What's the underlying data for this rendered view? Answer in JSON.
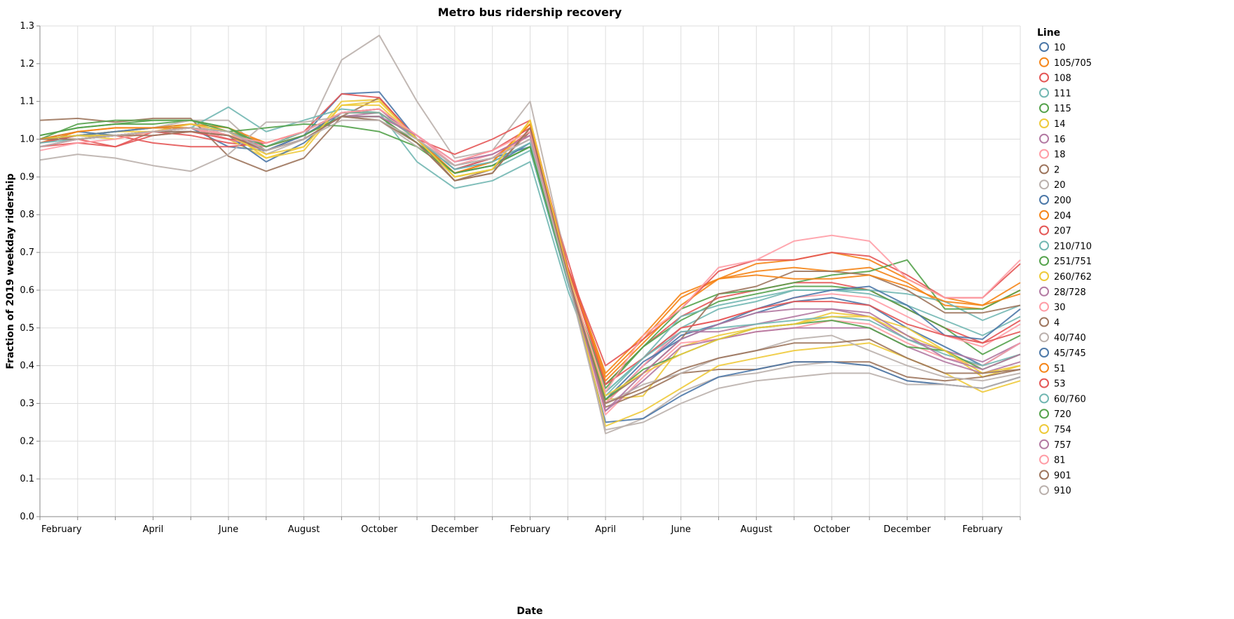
{
  "chart_data": {
    "type": "line",
    "title": "Metro bus ridership recovery",
    "xlabel": "Date",
    "ylabel": "Fraction of 2019 weekday ridership",
    "ylim": [
      0,
      1.3
    ],
    "yticks": [
      "0.0",
      "0.1",
      "0.2",
      "0.3",
      "0.4",
      "0.5",
      "0.6",
      "0.7",
      "0.8",
      "0.9",
      "1.0",
      "1.1",
      "1.2",
      "1.3"
    ],
    "x": [
      "2019-01",
      "2019-02",
      "2019-03",
      "2019-04",
      "2019-05",
      "2019-06",
      "2019-07",
      "2019-08",
      "2019-09",
      "2019-10",
      "2019-11",
      "2019-12",
      "2020-01",
      "2020-02",
      "2020-03",
      "2020-04",
      "2020-05",
      "2020-06",
      "2020-07",
      "2020-08",
      "2020-09",
      "2020-10",
      "2020-11",
      "2020-12",
      "2021-01",
      "2021-02",
      "2021-03"
    ],
    "xtick_labels": [
      {
        "label": "February",
        "month": 1
      },
      {
        "label": "April",
        "month": 3
      },
      {
        "label": "June",
        "month": 5
      },
      {
        "label": "August",
        "month": 7
      },
      {
        "label": "October",
        "month": 9
      },
      {
        "label": "December",
        "month": 11
      },
      {
        "label": "February",
        "month": 13
      },
      {
        "label": "April",
        "month": 15
      },
      {
        "label": "June",
        "month": 17
      },
      {
        "label": "August",
        "month": 19
      },
      {
        "label": "October",
        "month": 21
      },
      {
        "label": "December",
        "month": 23
      },
      {
        "label": "February",
        "month": 25
      }
    ],
    "grid": true,
    "legend": {
      "title": "Line",
      "position": "right"
    },
    "series": [
      {
        "name": "10",
        "color": "#4c78a8",
        "values": [
          1.0,
          1.02,
          1.01,
          1.02,
          1.03,
          0.98,
          0.97,
          1.01,
          1.12,
          1.125,
          1.0,
          0.92,
          0.95,
          0.98,
          0.62,
          0.3,
          0.4,
          0.48,
          0.51,
          0.54,
          0.57,
          0.58,
          0.56,
          0.5,
          0.45,
          0.4,
          0.46
        ]
      },
      {
        "name": "105/705",
        "color": "#f58518",
        "values": [
          1.0,
          1.01,
          1.02,
          1.03,
          1.03,
          1.02,
          0.99,
          1.02,
          1.07,
          1.07,
          1.0,
          0.91,
          0.94,
          1.04,
          0.66,
          0.38,
          0.48,
          0.59,
          0.63,
          0.65,
          0.66,
          0.65,
          0.66,
          0.62,
          0.56,
          0.55,
          0.6
        ]
      },
      {
        "name": "108",
        "color": "#e45756",
        "values": [
          0.98,
          1.0,
          0.98,
          1.02,
          1.01,
          0.99,
          0.98,
          1.01,
          1.07,
          1.07,
          1.0,
          0.92,
          0.95,
          1.02,
          0.68,
          0.35,
          0.45,
          0.53,
          0.58,
          0.6,
          0.62,
          0.62,
          0.6,
          0.55,
          0.5,
          0.46,
          0.52
        ]
      },
      {
        "name": "111",
        "color": "#72b7b2",
        "values": [
          0.99,
          1.01,
          1.02,
          1.03,
          1.04,
          1.02,
          0.98,
          1.02,
          1.07,
          1.07,
          1.0,
          0.9,
          0.92,
          0.97,
          0.62,
          0.32,
          0.42,
          0.5,
          0.55,
          0.57,
          0.6,
          0.6,
          0.59,
          0.56,
          0.52,
          0.48,
          0.53
        ]
      },
      {
        "name": "115",
        "color": "#54a24b",
        "values": [
          1.01,
          1.03,
          1.04,
          1.04,
          1.05,
          1.03,
          0.97,
          1.0,
          1.06,
          1.06,
          0.99,
          0.91,
          0.93,
          0.98,
          0.63,
          0.34,
          0.45,
          0.52,
          0.57,
          0.59,
          0.61,
          0.61,
          0.6,
          0.55,
          0.5,
          0.43,
          0.48
        ]
      },
      {
        "name": "14",
        "color": "#eeca3b",
        "values": [
          1.0,
          1.01,
          1.0,
          1.02,
          1.03,
          1.0,
          0.95,
          0.98,
          1.1,
          1.105,
          1.0,
          0.9,
          0.92,
          1.05,
          0.65,
          0.31,
          0.32,
          0.45,
          0.48,
          0.5,
          0.51,
          0.54,
          0.53,
          0.5,
          0.44,
          0.37,
          0.4
        ]
      },
      {
        "name": "16",
        "color": "#b279a2",
        "values": [
          0.98,
          1.0,
          1.01,
          1.02,
          1.03,
          1.0,
          0.97,
          1.0,
          1.06,
          1.07,
          1.01,
          0.93,
          0.95,
          1.0,
          0.63,
          0.3,
          0.4,
          0.49,
          0.49,
          0.51,
          0.53,
          0.55,
          0.53,
          0.47,
          0.44,
          0.41,
          0.46
        ]
      },
      {
        "name": "18",
        "color": "#ff9da6",
        "values": [
          0.98,
          1.0,
          1.01,
          1.02,
          1.04,
          1.01,
          0.98,
          1.01,
          1.07,
          1.08,
          1.0,
          0.93,
          0.96,
          1.01,
          0.64,
          0.27,
          0.37,
          0.46,
          0.47,
          0.49,
          0.5,
          0.52,
          0.51,
          0.46,
          0.42,
          0.4,
          0.46
        ]
      },
      {
        "name": "2",
        "color": "#9d755d",
        "values": [
          1.05,
          1.055,
          1.045,
          1.055,
          1.055,
          0.955,
          0.915,
          0.95,
          1.06,
          1.11,
          1.0,
          0.89,
          0.92,
          1.02,
          0.64,
          0.29,
          0.33,
          0.38,
          0.39,
          0.39,
          0.41,
          0.41,
          0.41,
          0.37,
          0.36,
          0.37,
          0.39
        ]
      },
      {
        "name": "20",
        "color": "#bab0ac",
        "values": [
          0.99,
          1.01,
          1.02,
          1.03,
          1.05,
          1.05,
          0.96,
          1.0,
          1.21,
          1.275,
          1.1,
          0.95,
          0.97,
          1.1,
          0.66,
          0.22,
          0.26,
          0.33,
          0.37,
          0.38,
          0.4,
          0.41,
          0.4,
          0.36,
          0.35,
          0.34,
          0.37
        ]
      },
      {
        "name": "200",
        "color": "#4c78a8",
        "values": [
          0.99,
          1.01,
          1.01,
          1.02,
          1.02,
          1.01,
          0.94,
          0.99,
          1.07,
          1.08,
          1.0,
          0.92,
          0.94,
          0.99,
          0.63,
          0.25,
          0.26,
          0.32,
          0.37,
          0.39,
          0.41,
          0.41,
          0.4,
          0.36,
          0.35,
          0.34,
          0.37
        ]
      },
      {
        "name": "204",
        "color": "#f58518",
        "values": [
          0.99,
          1.02,
          1.03,
          1.03,
          1.04,
          1.03,
          0.99,
          1.02,
          1.07,
          1.07,
          1.0,
          0.91,
          0.94,
          1.04,
          0.66,
          0.37,
          0.47,
          0.58,
          0.63,
          0.67,
          0.68,
          0.7,
          0.68,
          0.63,
          0.58,
          0.56,
          0.62
        ]
      },
      {
        "name": "207",
        "color": "#e45756",
        "values": [
          0.99,
          1.01,
          1.01,
          0.99,
          0.98,
          0.98,
          0.99,
          1.02,
          1.12,
          1.11,
          1.0,
          0.96,
          1.0,
          1.05,
          0.66,
          0.4,
          0.47,
          0.55,
          0.65,
          0.68,
          0.68,
          0.7,
          0.69,
          0.64,
          0.58,
          0.58,
          0.67
        ]
      },
      {
        "name": "210/710",
        "color": "#72b7b2",
        "values": [
          1.0,
          1.01,
          1.01,
          1.02,
          1.03,
          1.085,
          1.02,
          1.05,
          1.08,
          1.07,
          0.94,
          0.87,
          0.89,
          0.94,
          0.6,
          0.33,
          0.42,
          0.53,
          0.56,
          0.58,
          0.6,
          0.6,
          0.6,
          0.59,
          0.57,
          0.52,
          0.56
        ]
      },
      {
        "name": "251/751",
        "color": "#54a24b",
        "values": [
          1.0,
          1.04,
          1.05,
          1.05,
          1.05,
          1.02,
          1.03,
          1.04,
          1.035,
          1.02,
          0.98,
          0.91,
          0.93,
          0.98,
          0.63,
          0.35,
          0.45,
          0.55,
          0.59,
          0.6,
          0.62,
          0.64,
          0.65,
          0.68,
          0.55,
          0.55,
          0.6
        ]
      },
      {
        "name": "260/762",
        "color": "#eeca3b",
        "values": [
          1.0,
          1.01,
          1.02,
          1.02,
          1.04,
          1.02,
          0.95,
          0.97,
          1.09,
          1.1,
          1.0,
          0.9,
          0.92,
          1.05,
          0.65,
          0.24,
          0.28,
          0.34,
          0.4,
          0.42,
          0.44,
          0.45,
          0.46,
          0.42,
          0.38,
          0.33,
          0.36
        ]
      },
      {
        "name": "28/728",
        "color": "#b279a2",
        "values": [
          0.98,
          1.0,
          1.01,
          1.02,
          1.03,
          1.01,
          0.97,
          1.0,
          1.06,
          1.06,
          1.01,
          0.94,
          0.96,
          1.01,
          0.64,
          0.28,
          0.36,
          0.45,
          0.47,
          0.49,
          0.5,
          0.5,
          0.5,
          0.45,
          0.41,
          0.38,
          0.41
        ]
      },
      {
        "name": "30",
        "color": "#ff9da6",
        "values": [
          0.98,
          1.0,
          1.01,
          1.02,
          1.03,
          1.0,
          0.98,
          1.01,
          1.07,
          1.07,
          1.01,
          0.93,
          0.95,
          1.01,
          0.64,
          0.3,
          0.4,
          0.5,
          0.52,
          0.55,
          0.58,
          0.59,
          0.58,
          0.53,
          0.48,
          0.45,
          0.51
        ]
      },
      {
        "name": "4",
        "color": "#9d755d",
        "values": [
          1.0,
          1.0,
          1.01,
          1.02,
          1.02,
          1.01,
          0.97,
          1.0,
          1.06,
          1.06,
          0.99,
          0.89,
          0.91,
          1.03,
          0.64,
          0.31,
          0.38,
          0.47,
          0.59,
          0.61,
          0.65,
          0.65,
          0.64,
          0.6,
          0.54,
          0.54,
          0.56
        ]
      },
      {
        "name": "40/740",
        "color": "#bab0ac",
        "values": [
          0.945,
          0.96,
          0.95,
          0.93,
          0.915,
          0.96,
          1.045,
          1.045,
          1.06,
          1.05,
          0.98,
          0.93,
          0.95,
          1.0,
          0.64,
          0.3,
          0.35,
          0.38,
          0.42,
          0.44,
          0.47,
          0.48,
          0.44,
          0.4,
          0.37,
          0.36,
          0.38
        ]
      },
      {
        "name": "45/745",
        "color": "#4c78a8",
        "values": [
          1.0,
          1.01,
          1.02,
          1.03,
          1.03,
          1.02,
          0.97,
          1.01,
          1.07,
          1.07,
          1.0,
          0.91,
          0.93,
          0.99,
          0.63,
          0.31,
          0.41,
          0.47,
          0.51,
          0.55,
          0.58,
          0.6,
          0.61,
          0.56,
          0.48,
          0.47,
          0.55
        ]
      },
      {
        "name": "51",
        "color": "#f58518",
        "values": [
          1.0,
          1.02,
          1.03,
          1.03,
          1.03,
          1.02,
          0.98,
          1.02,
          1.07,
          1.07,
          1.0,
          0.91,
          0.94,
          1.04,
          0.66,
          0.36,
          0.46,
          0.56,
          0.63,
          0.64,
          0.63,
          0.63,
          0.64,
          0.61,
          0.57,
          0.56,
          0.59
        ]
      },
      {
        "name": "53",
        "color": "#e45756",
        "values": [
          0.98,
          0.99,
          0.98,
          1.01,
          1.02,
          1.0,
          0.99,
          1.02,
          1.07,
          1.08,
          1.01,
          0.94,
          0.97,
          1.03,
          0.66,
          0.35,
          0.42,
          0.5,
          0.52,
          0.55,
          0.57,
          0.57,
          0.56,
          0.51,
          0.48,
          0.46,
          0.49
        ]
      },
      {
        "name": "60/760",
        "color": "#72b7b2",
        "values": [
          0.99,
          1.0,
          1.01,
          1.02,
          1.03,
          1.02,
          0.98,
          1.02,
          1.07,
          1.07,
          1.0,
          0.92,
          0.94,
          0.99,
          0.63,
          0.33,
          0.42,
          0.49,
          0.5,
          0.51,
          0.52,
          0.53,
          0.52,
          0.47,
          0.43,
          0.4,
          0.43
        ]
      },
      {
        "name": "720",
        "color": "#54a24b",
        "values": [
          1.01,
          1.03,
          1.04,
          1.05,
          1.05,
          1.03,
          0.98,
          1.01,
          1.06,
          1.06,
          0.99,
          0.91,
          0.93,
          0.98,
          0.63,
          0.31,
          0.39,
          0.43,
          0.47,
          0.5,
          0.51,
          0.52,
          0.5,
          0.45,
          0.44,
          0.39,
          0.43
        ]
      },
      {
        "name": "754",
        "color": "#eeca3b",
        "values": [
          1.0,
          1.01,
          1.01,
          1.02,
          1.03,
          1.01,
          0.96,
          0.98,
          1.09,
          1.09,
          1.0,
          0.9,
          0.92,
          1.05,
          0.65,
          0.32,
          0.38,
          0.43,
          0.47,
          0.5,
          0.51,
          0.53,
          0.53,
          0.48,
          0.44,
          0.38,
          0.4
        ]
      },
      {
        "name": "757",
        "color": "#b279a2",
        "values": [
          0.98,
          1.0,
          1.01,
          1.02,
          1.03,
          1.01,
          0.97,
          1.0,
          1.06,
          1.06,
          1.01,
          0.94,
          0.96,
          1.01,
          0.64,
          0.28,
          0.38,
          0.47,
          0.51,
          0.54,
          0.55,
          0.55,
          0.54,
          0.48,
          0.42,
          0.39,
          0.43
        ]
      },
      {
        "name": "81",
        "color": "#ff9da6",
        "values": [
          0.97,
          0.99,
          1.0,
          1.02,
          1.03,
          1.01,
          0.99,
          1.02,
          1.07,
          1.08,
          1.01,
          0.94,
          0.97,
          1.02,
          0.64,
          0.33,
          0.48,
          0.55,
          0.66,
          0.68,
          0.73,
          0.745,
          0.73,
          0.63,
          0.58,
          0.58,
          0.68
        ]
      },
      {
        "name": "901",
        "color": "#9d755d",
        "values": [
          1.0,
          1.0,
          1.01,
          1.01,
          1.02,
          1.01,
          0.97,
          1.0,
          1.06,
          1.05,
          0.99,
          0.89,
          0.91,
          1.03,
          0.64,
          0.3,
          0.34,
          0.39,
          0.42,
          0.44,
          0.46,
          0.46,
          0.47,
          0.42,
          0.38,
          0.38,
          0.39
        ]
      },
      {
        "name": "910",
        "color": "#bab0ac",
        "values": [
          0.98,
          1.0,
          1.01,
          1.02,
          1.03,
          1.02,
          0.97,
          1.0,
          1.05,
          1.05,
          1.0,
          0.93,
          0.95,
          1.0,
          0.63,
          0.23,
          0.25,
          0.3,
          0.34,
          0.36,
          0.37,
          0.38,
          0.38,
          0.35,
          0.35,
          0.34,
          0.37
        ]
      }
    ]
  }
}
